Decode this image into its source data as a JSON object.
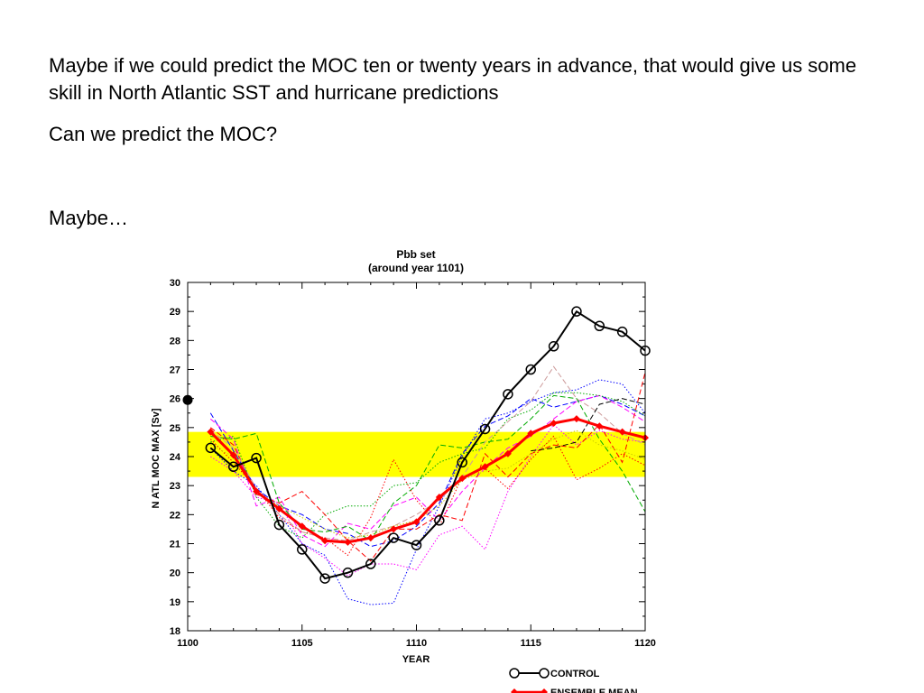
{
  "slide": {
    "paragraph1": "Maybe if we could predict the MOC ten or twenty years in advance, that would give us some skill in North Atlantic SST and hurricane predictions",
    "paragraph2": "Can we predict the MOC?",
    "paragraph3": "Maybe…"
  },
  "chart_data": {
    "type": "line",
    "title": "Pbb set",
    "subtitle": "(around year 1101)",
    "xlabel": "YEAR",
    "ylabel": "N ATL MOC MAX  [Sv]",
    "xlim": [
      1100,
      1120
    ],
    "ylim": [
      18,
      30
    ],
    "x_ticks": [
      1100,
      1105,
      1110,
      1115,
      1120
    ],
    "y_ticks": [
      18,
      19,
      20,
      21,
      22,
      23,
      24,
      25,
      26,
      27,
      28,
      29,
      30
    ],
    "grid": false,
    "legend_position": "bottom-right",
    "band": {
      "y0": 23.3,
      "y1": 24.85,
      "color": "#ffff00"
    },
    "initial_marker": {
      "x": 1100,
      "y": 25.95
    },
    "series": [
      {
        "name": "CONTROL",
        "color": "#000000",
        "style": "solid",
        "marker": "circle",
        "width": 2,
        "x": [
          1101,
          1102,
          1103,
          1104,
          1105,
          1106,
          1107,
          1108,
          1109,
          1110,
          1111,
          1112,
          1113,
          1114,
          1115,
          1116,
          1117,
          1118,
          1119,
          1120
        ],
        "y": [
          24.3,
          23.65,
          23.95,
          21.65,
          20.8,
          19.8,
          20.0,
          20.3,
          21.2,
          20.95,
          21.8,
          23.8,
          24.95,
          26.15,
          27.0,
          27.8,
          29.0,
          28.5,
          28.3,
          27.65
        ]
      },
      {
        "name": "ENSEMBLE MEAN",
        "color": "#ff0000",
        "style": "solid",
        "marker": "diamond",
        "width": 3,
        "x": [
          1101,
          1102,
          1103,
          1104,
          1105,
          1106,
          1107,
          1108,
          1109,
          1110,
          1111,
          1112,
          1113,
          1114,
          1115,
          1116,
          1117,
          1118,
          1119,
          1120
        ],
        "y": [
          24.85,
          24.05,
          22.8,
          22.2,
          21.6,
          21.1,
          21.05,
          21.2,
          21.5,
          21.75,
          22.6,
          23.25,
          23.65,
          24.1,
          24.8,
          25.15,
          25.3,
          25.05,
          24.85,
          24.65
        ]
      },
      {
        "color": "#0000ff",
        "style": "dotted",
        "marker": "none",
        "width": 1,
        "x": [
          1101,
          1102,
          1103,
          1104,
          1105,
          1106,
          1107,
          1108,
          1109,
          1110,
          1111,
          1112,
          1113,
          1114,
          1115,
          1116,
          1117,
          1118,
          1119,
          1120
        ],
        "y": [
          24.3,
          23.5,
          23.0,
          22.0,
          21.0,
          20.6,
          19.1,
          18.9,
          18.95,
          20.8,
          22.3,
          24.0,
          25.3,
          25.5,
          25.9,
          26.2,
          26.3,
          26.65,
          26.5,
          25.5
        ]
      },
      {
        "color": "#0000ff",
        "style": "dashed",
        "marker": "none",
        "width": 1,
        "x": [
          1101,
          1102,
          1103,
          1104,
          1105,
          1106,
          1107,
          1108,
          1109,
          1110,
          1111,
          1112,
          1113,
          1114,
          1115,
          1116,
          1117,
          1118,
          1119,
          1120
        ],
        "y": [
          25.5,
          24.2,
          22.9,
          22.3,
          22.0,
          21.5,
          21.35,
          20.9,
          21.1,
          21.6,
          22.4,
          24.1,
          25.05,
          25.4,
          26.0,
          25.7,
          25.9,
          26.1,
          25.8,
          25.4
        ]
      },
      {
        "color": "#ff00ff",
        "style": "dashed",
        "marker": "none",
        "width": 1,
        "x": [
          1101,
          1102,
          1103,
          1104,
          1105,
          1106,
          1107,
          1108,
          1109,
          1110,
          1111,
          1112,
          1113,
          1114,
          1115,
          1116,
          1117,
          1118,
          1119,
          1120
        ],
        "y": [
          25.3,
          24.6,
          22.3,
          22.6,
          21.3,
          20.9,
          21.7,
          21.5,
          22.3,
          22.6,
          21.8,
          22.8,
          23.6,
          24.3,
          24.7,
          25.3,
          25.9,
          26.1,
          25.7,
          25.2
        ]
      },
      {
        "color": "#ff00ff",
        "style": "dotted",
        "marker": "none",
        "width": 1,
        "x": [
          1101,
          1102,
          1103,
          1104,
          1105,
          1106,
          1107,
          1108,
          1109,
          1110,
          1111,
          1112,
          1113,
          1114,
          1115,
          1116,
          1117,
          1118,
          1119,
          1120
        ],
        "y": [
          24.0,
          23.5,
          22.6,
          22.4,
          21.0,
          20.5,
          19.9,
          20.3,
          20.3,
          20.1,
          21.3,
          21.6,
          20.8,
          22.8,
          24.0,
          25.1,
          24.4,
          24.9,
          24.6,
          24.5
        ]
      },
      {
        "color": "#00aa00",
        "style": "dashed",
        "marker": "none",
        "width": 1,
        "x": [
          1101,
          1102,
          1103,
          1104,
          1105,
          1106,
          1107,
          1108,
          1109,
          1110,
          1111,
          1112,
          1113,
          1114,
          1115,
          1116,
          1117,
          1118,
          1119,
          1120
        ],
        "y": [
          24.7,
          24.6,
          24.8,
          22.4,
          21.5,
          21.4,
          21.6,
          21.1,
          22.4,
          23.0,
          24.4,
          24.3,
          24.5,
          24.6,
          25.3,
          26.1,
          26.0,
          24.6,
          23.5,
          22.1
        ]
      },
      {
        "color": "#00aa00",
        "style": "dotted",
        "marker": "none",
        "width": 1,
        "x": [
          1101,
          1102,
          1103,
          1104,
          1105,
          1106,
          1107,
          1108,
          1109,
          1110,
          1111,
          1112,
          1113,
          1114,
          1115,
          1116,
          1117,
          1118,
          1119,
          1120
        ],
        "y": [
          24.5,
          24.7,
          22.6,
          21.6,
          21.2,
          22.0,
          22.3,
          22.3,
          23.0,
          23.1,
          23.8,
          24.1,
          24.3,
          25.3,
          25.6,
          26.2,
          26.2,
          26.1,
          25.9,
          25.4
        ]
      },
      {
        "color": "#ff0000",
        "style": "dashed",
        "marker": "none",
        "width": 1,
        "x": [
          1101,
          1102,
          1103,
          1104,
          1105,
          1106,
          1107,
          1108,
          1109,
          1110,
          1111,
          1112,
          1113,
          1114,
          1115,
          1116,
          1117,
          1118,
          1119,
          1120
        ],
        "y": [
          25.0,
          24.4,
          22.7,
          22.4,
          22.8,
          22.0,
          21.1,
          20.4,
          21.5,
          21.5,
          22.0,
          21.8,
          24.1,
          23.3,
          24.1,
          24.4,
          24.3,
          25.1,
          23.8,
          26.9
        ]
      },
      {
        "color": "#ff0000",
        "style": "dotted",
        "marker": "none",
        "width": 1,
        "x": [
          1101,
          1102,
          1103,
          1104,
          1105,
          1106,
          1107,
          1108,
          1109,
          1110,
          1111,
          1112,
          1113,
          1114,
          1115,
          1116,
          1117,
          1118,
          1119,
          1120
        ],
        "y": [
          24.6,
          23.8,
          22.9,
          21.9,
          21.4,
          21.2,
          20.6,
          21.9,
          23.9,
          22.5,
          21.6,
          23.3,
          23.6,
          22.9,
          23.9,
          24.7,
          23.2,
          23.6,
          24.1,
          23.7
        ]
      },
      {
        "color": "#cc9999",
        "style": "dashed",
        "marker": "none",
        "width": 1,
        "x": [
          1101,
          1102,
          1103,
          1104,
          1105,
          1106,
          1107,
          1108,
          1109,
          1110,
          1111,
          1112,
          1113,
          1114,
          1115,
          1116,
          1117,
          1118,
          1119,
          1120
        ],
        "y": [
          24.9,
          24.3,
          22.9,
          22.0,
          21.4,
          21.2,
          21.1,
          21.4,
          21.6,
          22.0,
          22.5,
          23.3,
          24.5,
          25.2,
          25.9,
          27.1,
          26.0,
          25.5,
          24.8,
          24.4
        ]
      },
      {
        "color": "#cccc00",
        "style": "dotted",
        "marker": "none",
        "width": 1,
        "x": [
          1101,
          1102,
          1103,
          1104,
          1105,
          1106,
          1107,
          1108,
          1109,
          1110,
          1111,
          1112,
          1113,
          1114,
          1115,
          1116,
          1117,
          1118,
          1119,
          1120
        ],
        "y": [
          24.4,
          24.0,
          22.8,
          22.3,
          21.9,
          21.5,
          21.2,
          21.3,
          21.6,
          21.8,
          22.3,
          23.2,
          23.5,
          23.6,
          24.1,
          24.6,
          24.9,
          24.4,
          24.2,
          23.9
        ]
      },
      {
        "color": "#000000",
        "style": "dashed",
        "marker": "none",
        "width": 1,
        "x": [
          1115,
          1116,
          1117,
          1118,
          1119,
          1120
        ],
        "y": [
          24.2,
          24.3,
          24.5,
          25.8,
          26.0,
          25.8
        ]
      }
    ]
  }
}
